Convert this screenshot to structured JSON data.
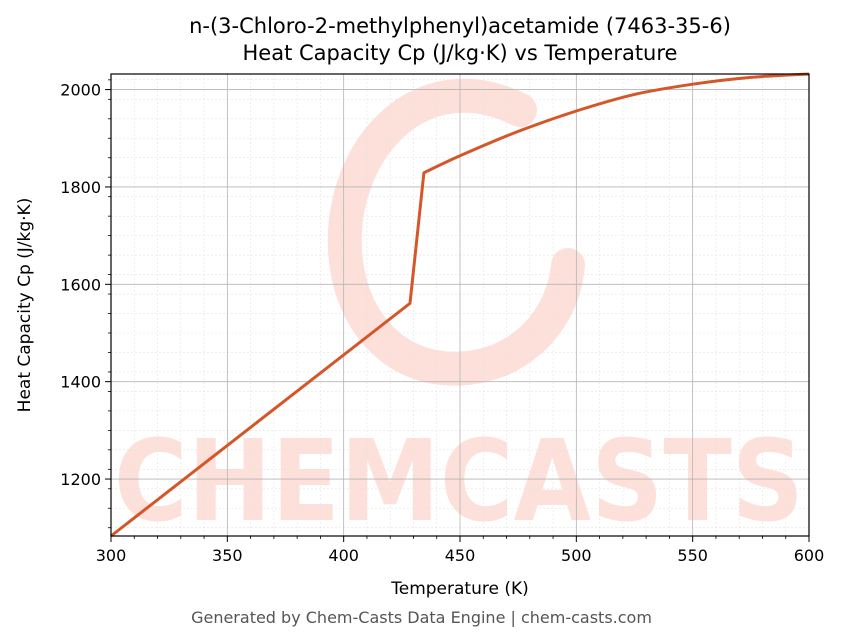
{
  "chart_data": {
    "type": "line",
    "title": "n-(3-Chloro-2-methylphenyl)acetamide (7463-35-6)",
    "subtitle": "Heat Capacity Cp (J/kg·K) vs Temperature",
    "xlabel": "Temperature (K)",
    "ylabel": "Heat Capacity Cp (J/kg·K)",
    "xlim": [
      300,
      600
    ],
    "ylim": [
      1083,
      2032
    ],
    "xticks": [
      300,
      350,
      400,
      450,
      500,
      550,
      600
    ],
    "yticks": [
      1200,
      1400,
      1600,
      1800,
      2000
    ],
    "grid": true,
    "series": [
      {
        "color": "#d4572a",
        "x": [
          300,
          428.5,
          434.5,
          450,
          475,
          500,
          525,
          550,
          575,
          600
        ],
        "y": [
          1083,
          1561,
          1829,
          1864,
          1914,
          1956,
          1990,
          2011,
          2025,
          2032
        ]
      }
    ]
  },
  "watermark": {
    "text": "CHEMCASTS",
    "color": "#fde0da"
  },
  "footer": "Generated by Chem-Casts Data Engine | chem-casts.com"
}
